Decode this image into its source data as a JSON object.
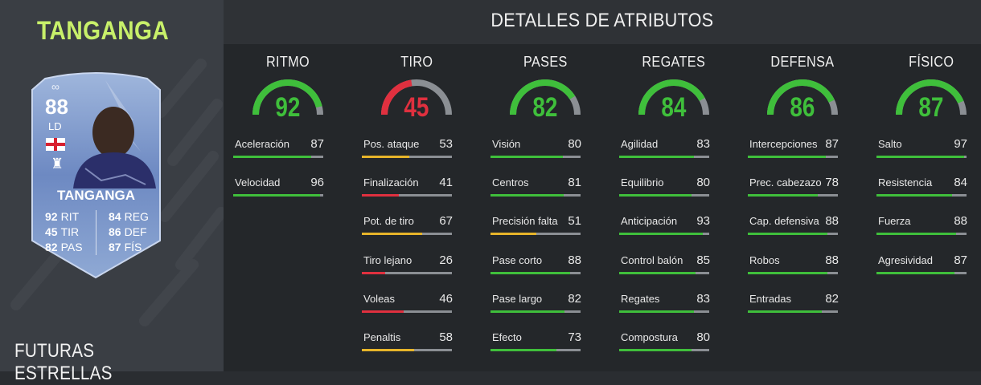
{
  "player_title": "TANGANGA",
  "card_type": "FUTURAS ESTRELLAS",
  "section_title": "DETALLES DE ATRIBUTOS",
  "colors": {
    "green": "#3fbf3b",
    "yellow": "#e7b52a",
    "red": "#e0303f",
    "track": "#8b8f94",
    "accent": "#c8f06a"
  },
  "card": {
    "rating": "88",
    "position": "LD",
    "infinity": "∞",
    "name": "TANGANGA",
    "icons": {
      "flag": "england-flag-icon",
      "crest": "club-crest-icon"
    },
    "stats": [
      {
        "value": "92",
        "label": "RIT"
      },
      {
        "value": "45",
        "label": "TIR"
      },
      {
        "value": "82",
        "label": "PAS"
      },
      {
        "value": "84",
        "label": "REG"
      },
      {
        "value": "86",
        "label": "DEF"
      },
      {
        "value": "87",
        "label": "FÍS"
      }
    ]
  },
  "categories": [
    {
      "title": "RITMO",
      "value": 92,
      "stats": [
        {
          "name": "Aceleración",
          "value": 87
        },
        {
          "name": "Velocidad",
          "value": 96
        }
      ]
    },
    {
      "title": "TIRO",
      "value": 45,
      "stats": [
        {
          "name": "Pos. ataque",
          "value": 53
        },
        {
          "name": "Finalización",
          "value": 41
        },
        {
          "name": "Pot. de tiro",
          "value": 67
        },
        {
          "name": "Tiro lejano",
          "value": 26
        },
        {
          "name": "Voleas",
          "value": 46
        },
        {
          "name": "Penaltis",
          "value": 58
        }
      ]
    },
    {
      "title": "PASES",
      "value": 82,
      "stats": [
        {
          "name": "Visión",
          "value": 80
        },
        {
          "name": "Centros",
          "value": 81
        },
        {
          "name": "Precisión falta",
          "value": 51
        },
        {
          "name": "Pase corto",
          "value": 88
        },
        {
          "name": "Pase largo",
          "value": 82
        },
        {
          "name": "Efecto",
          "value": 73
        }
      ]
    },
    {
      "title": "REGATES",
      "value": 84,
      "stats": [
        {
          "name": "Agilidad",
          "value": 83
        },
        {
          "name": "Equilibrio",
          "value": 80
        },
        {
          "name": "Anticipación",
          "value": 93
        },
        {
          "name": "Control balón",
          "value": 85
        },
        {
          "name": "Regates",
          "value": 83
        },
        {
          "name": "Compostura",
          "value": 80
        }
      ]
    },
    {
      "title": "DEFENSA",
      "value": 86,
      "stats": [
        {
          "name": "Intercepciones",
          "value": 87
        },
        {
          "name": "Prec. cabezazo",
          "value": 78
        },
        {
          "name": "Cap. defensiva",
          "value": 88
        },
        {
          "name": "Robos",
          "value": 88
        },
        {
          "name": "Entradas",
          "value": 82
        }
      ]
    },
    {
      "title": "FÍSICO",
      "value": 87,
      "stats": [
        {
          "name": "Salto",
          "value": 97
        },
        {
          "name": "Resistencia",
          "value": 84
        },
        {
          "name": "Fuerza",
          "value": 88
        },
        {
          "name": "Agresividad",
          "value": 87
        }
      ]
    }
  ]
}
